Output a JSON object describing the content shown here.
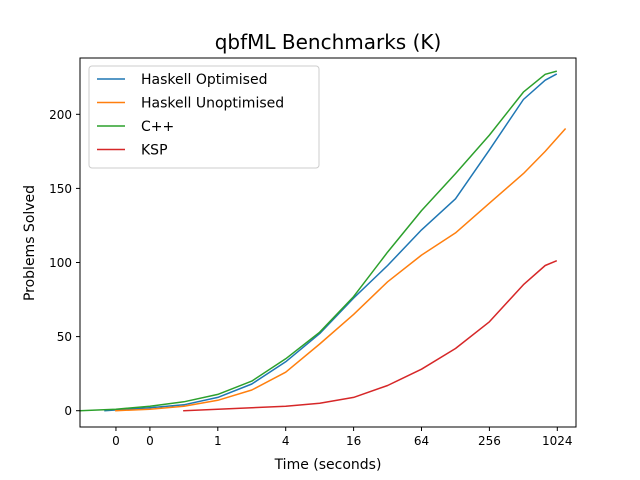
{
  "chart_data": {
    "type": "line",
    "title": "qbfML Benchmarks (K)",
    "xlabel": "Time (seconds)",
    "ylabel": "Problems Solved",
    "x_scale": "log2",
    "xlim": [
      0.06,
      1500
    ],
    "ylim": [
      -11,
      238
    ],
    "xticks": [
      {
        "value": 0.125,
        "label": "0"
      },
      {
        "value": 0.25,
        "label": "0"
      },
      {
        "value": 1,
        "label": "1"
      },
      {
        "value": 4,
        "label": "4"
      },
      {
        "value": 16,
        "label": "16"
      },
      {
        "value": 64,
        "label": "64"
      },
      {
        "value": 256,
        "label": "256"
      },
      {
        "value": 1024,
        "label": "1024"
      }
    ],
    "yticks": [
      0,
      50,
      100,
      150,
      200
    ],
    "legend_position": "top-left",
    "series": [
      {
        "name": "Haskell Optimised",
        "color": "#1f77b4",
        "points": [
          [
            0.1,
            0
          ],
          [
            0.25,
            2
          ],
          [
            0.5,
            4
          ],
          [
            1,
            9
          ],
          [
            2,
            18
          ],
          [
            4,
            33
          ],
          [
            8,
            52
          ],
          [
            16,
            76
          ],
          [
            32,
            98
          ],
          [
            64,
            122
          ],
          [
            128,
            143
          ],
          [
            256,
            176
          ],
          [
            512,
            210
          ],
          [
            800,
            223
          ],
          [
            1000,
            227
          ]
        ]
      },
      {
        "name": "Haskell Unoptimised",
        "color": "#ff7f0e",
        "points": [
          [
            0.125,
            0
          ],
          [
            0.25,
            1
          ],
          [
            0.5,
            3
          ],
          [
            1,
            7
          ],
          [
            2,
            14
          ],
          [
            4,
            26
          ],
          [
            8,
            45
          ],
          [
            16,
            65
          ],
          [
            32,
            87
          ],
          [
            64,
            105
          ],
          [
            128,
            120
          ],
          [
            256,
            140
          ],
          [
            512,
            160
          ],
          [
            800,
            175
          ],
          [
            1200,
            190
          ]
        ]
      },
      {
        "name": "C++",
        "color": "#2ca02c",
        "points": [
          [
            0.06,
            0
          ],
          [
            0.125,
            1
          ],
          [
            0.25,
            3
          ],
          [
            0.5,
            6
          ],
          [
            1,
            11
          ],
          [
            2,
            20
          ],
          [
            4,
            35
          ],
          [
            8,
            53
          ],
          [
            16,
            77
          ],
          [
            32,
            107
          ],
          [
            64,
            135
          ],
          [
            128,
            160
          ],
          [
            256,
            186
          ],
          [
            512,
            215
          ],
          [
            800,
            227
          ],
          [
            1000,
            229
          ]
        ]
      },
      {
        "name": "KSP",
        "color": "#d62728",
        "points": [
          [
            0.5,
            0
          ],
          [
            1,
            1
          ],
          [
            2,
            2
          ],
          [
            4,
            3
          ],
          [
            8,
            5
          ],
          [
            16,
            9
          ],
          [
            32,
            17
          ],
          [
            64,
            28
          ],
          [
            128,
            42
          ],
          [
            256,
            60
          ],
          [
            512,
            85
          ],
          [
            800,
            98
          ],
          [
            1000,
            101
          ]
        ]
      }
    ]
  }
}
